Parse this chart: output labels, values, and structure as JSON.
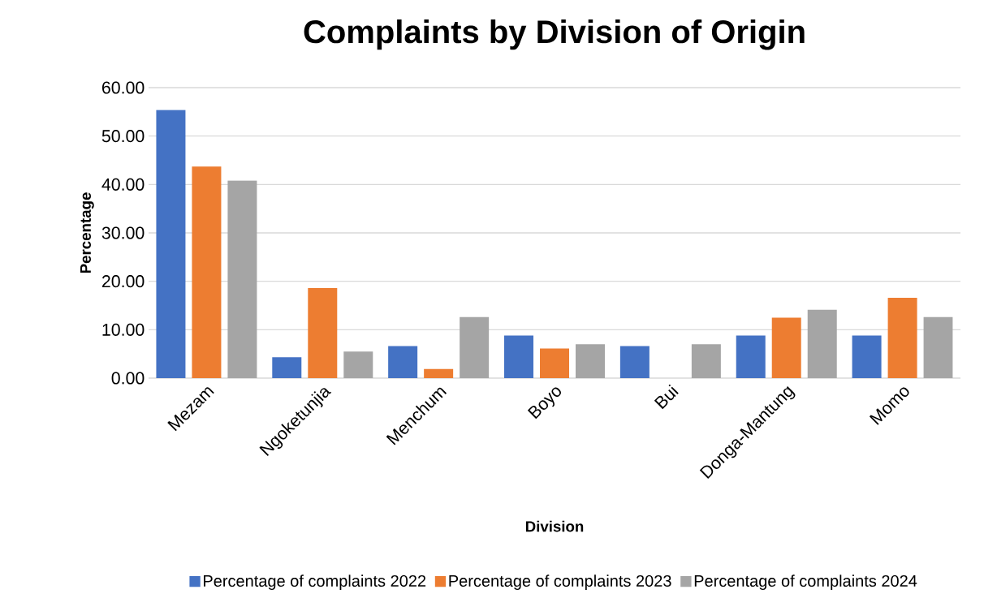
{
  "chart_data": {
    "type": "bar",
    "title": "Complaints by Division of Origin",
    "xlabel": "Division",
    "ylabel": "Percentage",
    "categories": [
      "Mezam",
      "Ngoketunjia",
      "Menchum",
      "Boyo",
      "Bui",
      "Donga-Mantung",
      "Momo"
    ],
    "series": [
      {
        "name": "Percentage of complaints 2022",
        "color": "#4472c4",
        "values": [
          55.4,
          4.3,
          6.6,
          8.8,
          6.6,
          8.8,
          8.8
        ]
      },
      {
        "name": "Percentage of complaints 2023",
        "color": "#ed7d31",
        "values": [
          43.7,
          18.6,
          1.9,
          6.1,
          0,
          12.5,
          16.6
        ]
      },
      {
        "name": "Percentage of complaints 2024",
        "color": "#a5a5a5",
        "values": [
          40.8,
          5.5,
          12.6,
          7.0,
          7.0,
          14.1,
          12.6
        ]
      }
    ],
    "ylim": [
      0,
      60
    ],
    "yticks": [
      {
        "value": 0,
        "label": "0.00"
      },
      {
        "value": 10,
        "label": "10.00"
      },
      {
        "value": 20,
        "label": "20.00"
      },
      {
        "value": 30,
        "label": "30.00"
      },
      {
        "value": 40,
        "label": "40.00"
      },
      {
        "value": 50,
        "label": "50.00"
      },
      {
        "value": 60,
        "label": "60.00"
      }
    ],
    "grid": "y",
    "legend": "bottom"
  }
}
